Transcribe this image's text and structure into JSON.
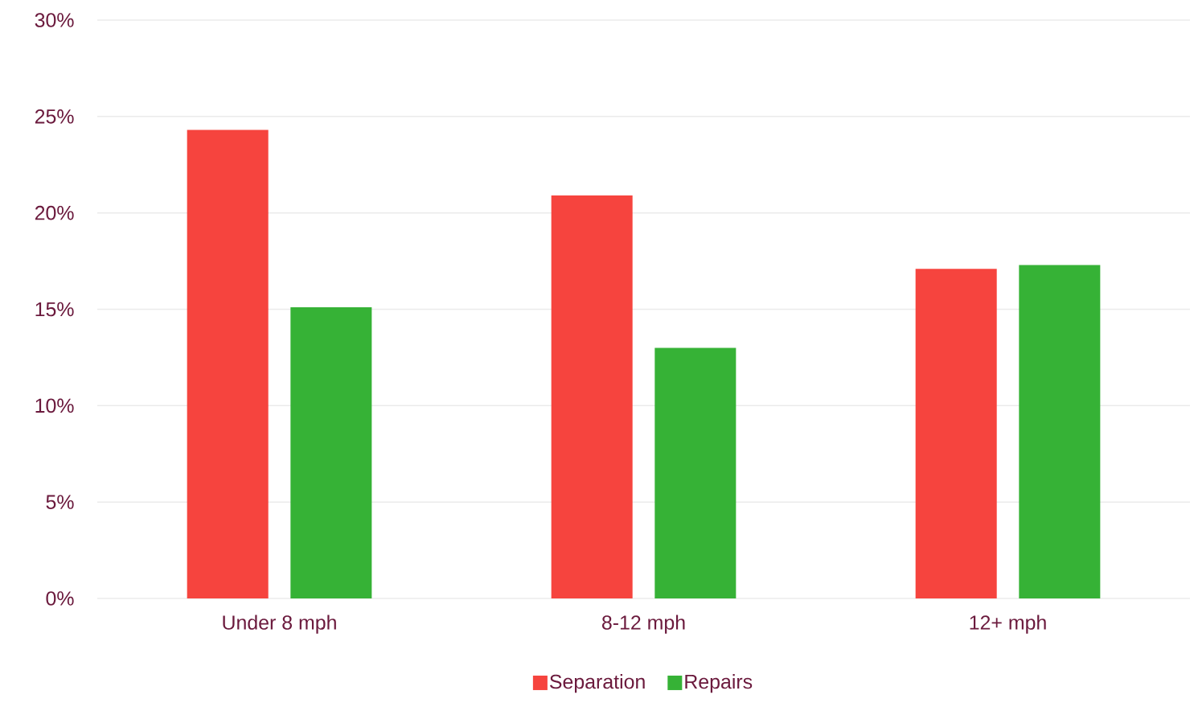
{
  "chart_data": {
    "type": "bar",
    "categories": [
      "Under 8 mph",
      "8-12 mph",
      "12+ mph"
    ],
    "series": [
      {
        "name": "Separation",
        "color": "#f6443e",
        "values": [
          24.3,
          20.9,
          17.1
        ]
      },
      {
        "name": "Repairs",
        "color": "#36b236",
        "values": [
          15.1,
          13.0,
          17.3
        ]
      }
    ],
    "ylim": [
      0,
      30
    ],
    "yticks": [
      {
        "value": 0,
        "label": "0%"
      },
      {
        "value": 5,
        "label": "5%"
      },
      {
        "value": 10,
        "label": "10%"
      },
      {
        "value": 15,
        "label": "15%"
      },
      {
        "value": 20,
        "label": "20%"
      },
      {
        "value": 25,
        "label": "25%"
      },
      {
        "value": 30,
        "label": "30%"
      }
    ],
    "grid": "y",
    "legend": "bottom"
  }
}
